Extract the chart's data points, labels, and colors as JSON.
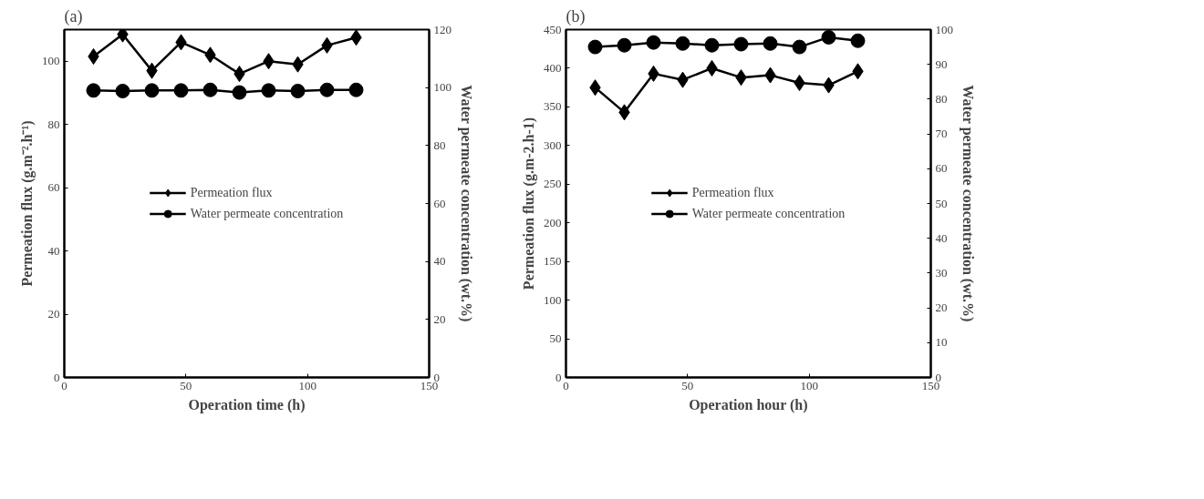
{
  "chart_data": [
    {
      "type": "line",
      "title": "(a)",
      "xlabel": "Operation time (h)",
      "ylabel": "Permeation flux (g.m⁻².h⁻¹)",
      "y2label": "Water permeate concentration (wt.%)",
      "x": [
        12,
        24,
        36,
        48,
        60,
        72,
        84,
        96,
        108,
        120
      ],
      "xlim": [
        0,
        150
      ],
      "xticks": [
        0,
        50,
        100,
        150
      ],
      "ylim": [
        0,
        110
      ],
      "yticks": [
        0,
        20,
        40,
        60,
        80,
        100
      ],
      "y2lim": [
        0,
        120
      ],
      "y2ticks": [
        0,
        20,
        40,
        60,
        80,
        100,
        120
      ],
      "grid": false,
      "legend": "center",
      "series": [
        {
          "name": "Permeation flux",
          "color": "#000000",
          "marker": "diamond",
          "values": [
            101.5,
            108.5,
            97,
            106,
            102,
            96,
            100,
            99,
            105,
            107.5
          ]
        },
        {
          "name": "Water permeate concentration",
          "color": "#000000",
          "marker": "circle",
          "axis": "y2",
          "values": [
            99,
            98.8,
            99,
            99,
            99.2,
            98.3,
            99,
            98.8,
            99.2,
            99.2
          ]
        }
      ]
    },
    {
      "type": "line",
      "title": "(b)",
      "xlabel": "Operation hour (h)",
      "ylabel": "Permeation flux (g.m-2.h-1)",
      "y2label": "Water permeate concentration (wt.%)",
      "x": [
        12,
        24,
        36,
        48,
        60,
        72,
        84,
        96,
        108,
        120
      ],
      "xlim": [
        0,
        150
      ],
      "xticks": [
        0,
        50,
        100,
        150
      ],
      "ylim": [
        0,
        450
      ],
      "yticks": [
        0,
        50,
        100,
        150,
        200,
        250,
        300,
        350,
        400,
        450
      ],
      "y2lim": [
        0,
        100
      ],
      "y2ticks": [
        0,
        10,
        20,
        30,
        40,
        50,
        60,
        70,
        80,
        90,
        100
      ],
      "grid": false,
      "legend": "center",
      "series": [
        {
          "name": "Permeation flux",
          "color": "#000000",
          "marker": "diamond",
          "values": [
            375,
            343,
            393,
            385,
            400,
            388,
            391,
            381,
            378,
            396
          ]
        },
        {
          "name": "Water permeate concentration",
          "color": "#000000",
          "marker": "circle",
          "axis": "y2",
          "values": [
            95,
            95.5,
            96.3,
            96,
            95.5,
            95.8,
            96,
            95,
            97.8,
            96.8
          ]
        }
      ]
    }
  ]
}
